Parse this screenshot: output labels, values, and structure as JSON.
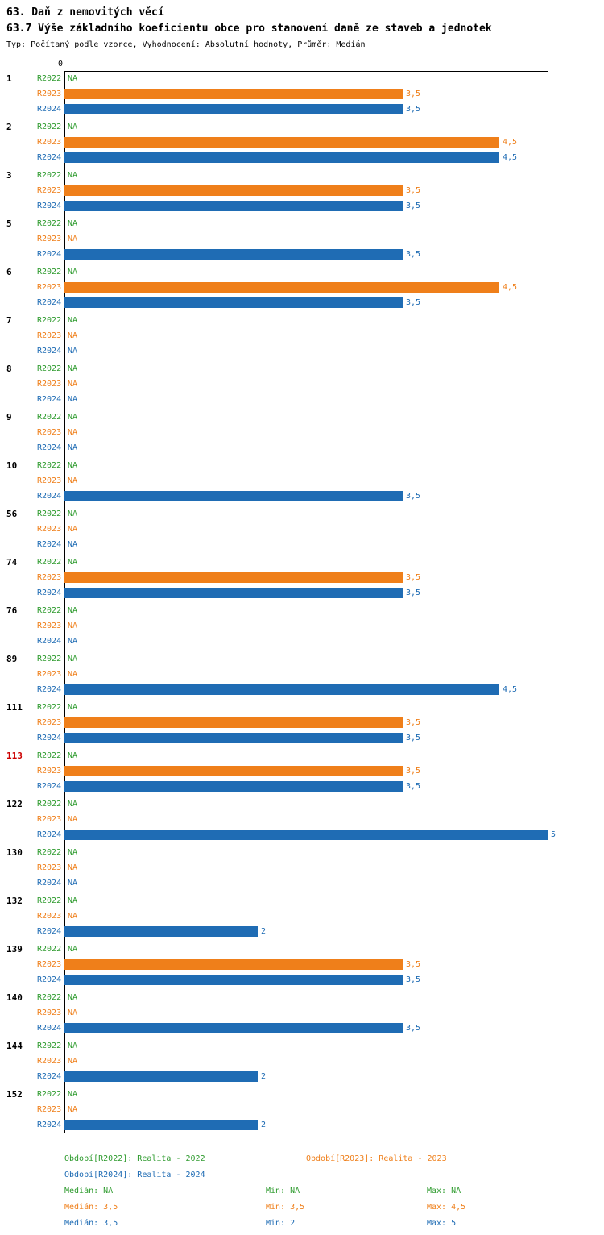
{
  "header": {
    "title": "63. Daň z nemovitých věcí",
    "subtitle": "63.7 Výše základního koeficientu obce pro stanovení daně ze staveb a jednotek",
    "meta": "Typ: Počítaný podle vzorce, Vyhodnocení: Absolutní hodnoty, Průměr: Medián"
  },
  "colors": {
    "r2022": "#2e9b2e",
    "r2023": "#ef7f1a",
    "r2024": "#1f6cb4",
    "highlight": "#cc0000",
    "reference_line": "#3d6e8f"
  },
  "chart_data": {
    "type": "bar",
    "orientation": "horizontal",
    "title": "63.7 Výše základního koeficientu obce pro stanovení daně ze staveb a jednotek",
    "x_axis": {
      "origin_label": "0",
      "range": [
        0,
        5
      ],
      "reference_value": 3.5
    },
    "series_labels": [
      "R2022",
      "R2023",
      "R2024"
    ],
    "groups": [
      {
        "id": "1",
        "highlight": false,
        "values": [
          null,
          3.5,
          3.5
        ],
        "labels": [
          "NA",
          "3,5",
          "3,5"
        ]
      },
      {
        "id": "2",
        "highlight": false,
        "values": [
          null,
          4.5,
          4.5
        ],
        "labels": [
          "NA",
          "4,5",
          "4,5"
        ]
      },
      {
        "id": "3",
        "highlight": false,
        "values": [
          null,
          3.5,
          3.5
        ],
        "labels": [
          "NA",
          "3,5",
          "3,5"
        ]
      },
      {
        "id": "5",
        "highlight": false,
        "values": [
          null,
          null,
          3.5
        ],
        "labels": [
          "NA",
          "NA",
          "3,5"
        ]
      },
      {
        "id": "6",
        "highlight": false,
        "values": [
          null,
          4.5,
          3.5
        ],
        "labels": [
          "NA",
          "4,5",
          "3,5"
        ]
      },
      {
        "id": "7",
        "highlight": false,
        "values": [
          null,
          null,
          null
        ],
        "labels": [
          "NA",
          "NA",
          "NA"
        ]
      },
      {
        "id": "8",
        "highlight": false,
        "values": [
          null,
          null,
          null
        ],
        "labels": [
          "NA",
          "NA",
          "NA"
        ]
      },
      {
        "id": "9",
        "highlight": false,
        "values": [
          null,
          null,
          null
        ],
        "labels": [
          "NA",
          "NA",
          "NA"
        ]
      },
      {
        "id": "10",
        "highlight": false,
        "values": [
          null,
          null,
          3.5
        ],
        "labels": [
          "NA",
          "NA",
          "3,5"
        ]
      },
      {
        "id": "56",
        "highlight": false,
        "values": [
          null,
          null,
          null
        ],
        "labels": [
          "NA",
          "NA",
          "NA"
        ]
      },
      {
        "id": "74",
        "highlight": false,
        "values": [
          null,
          3.5,
          3.5
        ],
        "labels": [
          "NA",
          "3,5",
          "3,5"
        ]
      },
      {
        "id": "76",
        "highlight": false,
        "values": [
          null,
          null,
          null
        ],
        "labels": [
          "NA",
          "NA",
          "NA"
        ]
      },
      {
        "id": "89",
        "highlight": false,
        "values": [
          null,
          null,
          4.5
        ],
        "labels": [
          "NA",
          "NA",
          "4,5"
        ]
      },
      {
        "id": "111",
        "highlight": false,
        "values": [
          null,
          3.5,
          3.5
        ],
        "labels": [
          "NA",
          "3,5",
          "3,5"
        ]
      },
      {
        "id": "113",
        "highlight": true,
        "values": [
          null,
          3.5,
          3.5
        ],
        "labels": [
          "NA",
          "3,5",
          "3,5"
        ]
      },
      {
        "id": "122",
        "highlight": false,
        "values": [
          null,
          null,
          5
        ],
        "labels": [
          "NA",
          "NA",
          "5"
        ]
      },
      {
        "id": "130",
        "highlight": false,
        "values": [
          null,
          null,
          null
        ],
        "labels": [
          "NA",
          "NA",
          "NA"
        ]
      },
      {
        "id": "132",
        "highlight": false,
        "values": [
          null,
          null,
          2
        ],
        "labels": [
          "NA",
          "NA",
          "2"
        ]
      },
      {
        "id": "139",
        "highlight": false,
        "values": [
          null,
          3.5,
          3.5
        ],
        "labels": [
          "NA",
          "3,5",
          "3,5"
        ]
      },
      {
        "id": "140",
        "highlight": false,
        "values": [
          null,
          null,
          3.5
        ],
        "labels": [
          "NA",
          "NA",
          "3,5"
        ]
      },
      {
        "id": "144",
        "highlight": false,
        "values": [
          null,
          null,
          2
        ],
        "labels": [
          "NA",
          "NA",
          "2"
        ]
      },
      {
        "id": "152",
        "highlight": false,
        "values": [
          null,
          null,
          2
        ],
        "labels": [
          "NA",
          "NA",
          "2"
        ]
      }
    ]
  },
  "legend": {
    "period_r2022": "Období[R2022]: Realita - 2022",
    "period_r2023": "Období[R2023]: Realita - 2023",
    "period_r2024": "Období[R2024]: Realita - 2024",
    "stats": [
      {
        "median": "Medián: NA",
        "min": "Min: NA",
        "max": "Max: NA"
      },
      {
        "median": "Medián: 3,5",
        "min": "Min: 3,5",
        "max": "Max: 4,5"
      },
      {
        "median": "Medián: 3,5",
        "min": "Min: 2",
        "max": "Max: 5"
      }
    ]
  }
}
